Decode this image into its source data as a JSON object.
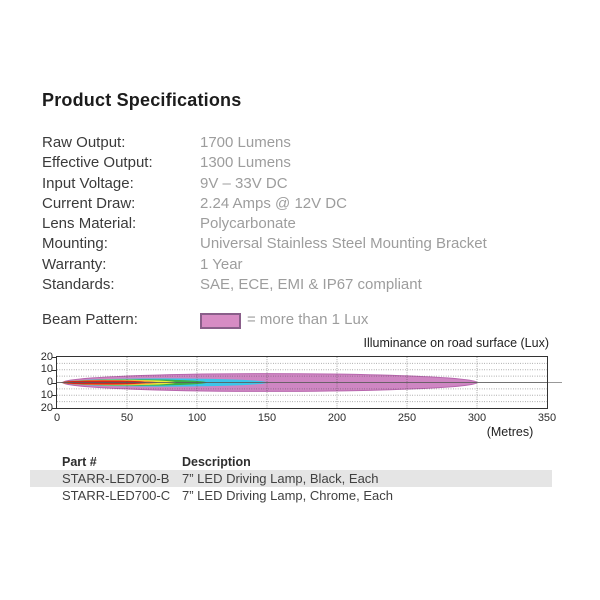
{
  "page": {
    "title": "Product Specifications"
  },
  "specs": [
    {
      "label": "Raw Output:",
      "value": "1700 Lumens"
    },
    {
      "label": "Effective Output:",
      "value": "1300 Lumens"
    },
    {
      "label": "Input Voltage:",
      "value": "9V – 33V DC"
    },
    {
      "label": "Current Draw:",
      "value": "2.24 Amps @ 12V DC"
    },
    {
      "label": "Lens Material:",
      "value": "Polycarbonate"
    },
    {
      "label": "Mounting:",
      "value": "Universal Stainless Steel Mounting Bracket"
    },
    {
      "label": "Warranty:",
      "value": "1 Year"
    },
    {
      "label": "Standards:",
      "value": "SAE, ECE, EMI & IP67 compliant"
    }
  ],
  "beam_legend": {
    "label": "Beam Pattern:",
    "text": "= more than 1 Lux",
    "swatch_color": "#d78cc4",
    "swatch_border": "#8a5f8a"
  },
  "chart_data": {
    "type": "area",
    "title": "Illuminance on road surface (Lux)",
    "xlabel": "(Metres)",
    "xlim": [
      0,
      350
    ],
    "ylim": [
      -20,
      20
    ],
    "x_ticks": [
      0,
      50,
      100,
      150,
      200,
      250,
      300,
      350
    ],
    "y_ticks": [
      {
        "label": "20",
        "y": 20
      },
      {
        "label": "10",
        "y": 10
      },
      {
        "label": "0",
        "y": 0
      },
      {
        "label": "10",
        "y": -10
      },
      {
        "label": "20",
        "y": -20
      }
    ],
    "grid": true,
    "grid_minor_y_step": 5,
    "legend_position": "above-left",
    "series": [
      {
        "name": "more than 1 Lux zone",
        "color": "#cf86c3",
        "edge": "#b867ae",
        "start_m": 4,
        "end_m": 300,
        "half_width_m": 7.0
      },
      {
        "name": "cyan contour",
        "color": "#3cc6e9",
        "start_m": 3,
        "end_m": 150,
        "half_width_m": 3.2
      },
      {
        "name": "green contour",
        "color": "#3caf46",
        "start_m": 4,
        "end_m": 107,
        "half_width_m": 2.5
      },
      {
        "name": "yellow contour",
        "color": "#efe93a",
        "start_m": 4,
        "end_m": 85,
        "half_width_m": 2.15
      },
      {
        "name": "orange contour",
        "color": "#f29339",
        "start_m": 3,
        "end_m": 72,
        "half_width_m": 1.9
      },
      {
        "name": "red contour",
        "color": "#d7251d",
        "start_m": 3,
        "end_m": 64,
        "half_width_m": 1.6
      }
    ]
  },
  "table": {
    "headers": [
      "Part #",
      "Description"
    ],
    "rows": [
      {
        "part": "STARR-LED700-B",
        "description": "7” LED Driving Lamp, Black, Each"
      },
      {
        "part": "STARR-LED700-C",
        "description": "7” LED Driving Lamp, Chrome, Each"
      }
    ],
    "row_highlight": "#e5e5e5"
  }
}
